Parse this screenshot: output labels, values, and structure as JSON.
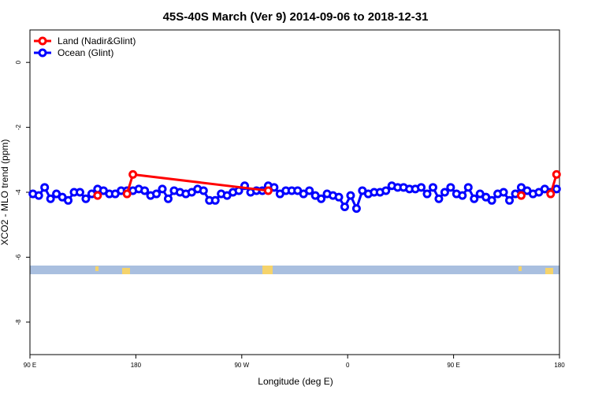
{
  "chart_data": {
    "type": "line",
    "title": "45S-40S March (Ver 9)   2014-09-06 to 2018-12-31",
    "xlabel": "Longitude (deg E)",
    "ylabel": "XCO2 - MLO trend (ppm)",
    "xlim": [
      90,
      540
    ],
    "ylim": [
      -9,
      1
    ],
    "xticks": [
      {
        "value": 90,
        "label": "90 E"
      },
      180,
      {
        "value": 270,
        "label": "90 W"
      },
      {
        "value": 360,
        "label": "0"
      },
      {
        "value": 450,
        "label": "90 E"
      },
      {
        "value": 540,
        "label": "180"
      }
    ],
    "yticks": [
      -8,
      -6,
      -4,
      -2,
      0
    ],
    "legend": "topleft",
    "series": [
      {
        "name": "Land (Nadir&Glint)",
        "color": "#ff0000",
        "x": [
          147.5,
          152.5,
          172.5,
          177.5,
          292.5,
          297.5,
          507.5,
          512.5,
          532.5,
          537.5
        ],
        "values": [
          -4.1,
          null,
          -4.05,
          -3.45,
          -3.95,
          null,
          -4.1,
          null,
          -4.05,
          -3.45
        ]
      },
      {
        "name": "Ocean (Glint)",
        "color": "#0000ff",
        "x": [
          92.5,
          97.5,
          102.5,
          107.5,
          112.5,
          117.5,
          122.5,
          127.5,
          132.5,
          137.5,
          142.5,
          147.5,
          152.5,
          157.5,
          162.5,
          167.5,
          172.5,
          177.5,
          182.5,
          187.5,
          192.5,
          197.5,
          202.5,
          207.5,
          212.5,
          217.5,
          222.5,
          227.5,
          232.5,
          237.5,
          242.5,
          247.5,
          252.5,
          257.5,
          262.5,
          267.5,
          272.5,
          277.5,
          282.5,
          287.5,
          292.5,
          297.5,
          302.5,
          307.5,
          312.5,
          317.5,
          322.5,
          327.5,
          332.5,
          337.5,
          342.5,
          347.5,
          352.5,
          357.5,
          362.5,
          367.5,
          372.5,
          377.5,
          382.5,
          387.5,
          392.5,
          397.5,
          402.5,
          407.5,
          412.5,
          417.5,
          422.5,
          427.5,
          432.5,
          437.5,
          442.5,
          447.5,
          452.5,
          457.5,
          462.5,
          467.5,
          472.5,
          477.5,
          482.5,
          487.5,
          492.5,
          497.5,
          502.5,
          507.5,
          512.5,
          517.5,
          522.5,
          527.5,
          532.5,
          537.5
        ],
        "values": [
          -4.05,
          -4.1,
          -3.85,
          -4.2,
          -4.05,
          -4.15,
          -4.25,
          -4.0,
          -4.0,
          -4.2,
          -4.05,
          -3.9,
          -3.95,
          -4.05,
          -4.05,
          -3.95,
          -3.95,
          -3.95,
          -3.9,
          -3.95,
          -4.1,
          -4.05,
          -3.9,
          -4.2,
          -3.95,
          -4.0,
          -4.05,
          -4.0,
          -3.9,
          -3.95,
          -4.25,
          -4.25,
          -4.05,
          -4.1,
          -4.0,
          -3.95,
          -3.8,
          -4.0,
          -3.95,
          -3.95,
          -3.8,
          -3.85,
          -4.05,
          -3.95,
          -3.95,
          -3.95,
          -4.05,
          -3.95,
          -4.1,
          -4.2,
          -4.05,
          -4.1,
          -4.15,
          -4.45,
          -4.1,
          -4.5,
          -3.95,
          -4.05,
          -4.0,
          -4.0,
          -3.95,
          -3.8,
          -3.85,
          -3.85,
          -3.9,
          -3.9,
          -3.85,
          -4.05,
          -3.85,
          -4.2,
          -4.0,
          -3.85,
          -4.05,
          -4.1,
          -3.85,
          -4.2,
          -4.05,
          -4.15,
          -4.25,
          -4.05,
          -4.0,
          -4.25,
          -4.05,
          -3.85,
          -3.95,
          -4.05,
          -4.0,
          -3.9,
          -4.0,
          -3.9
        ]
      }
    ]
  }
}
